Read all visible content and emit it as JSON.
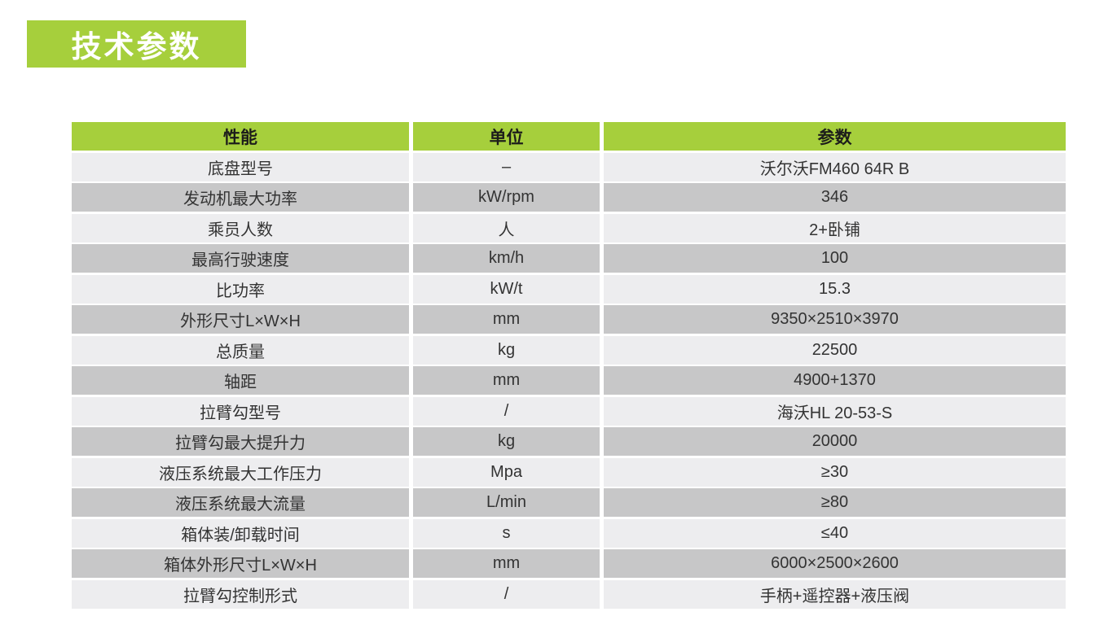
{
  "header": {
    "title": "技术参数"
  },
  "colors": {
    "accent_green": "#a6cf3c",
    "row_light": "#ededef",
    "row_dark": "#c7c7c8",
    "badge_text": "#ffffff",
    "header_text": "#1d1d1b",
    "cell_text": "#333333"
  },
  "table": {
    "columns": [
      "性能",
      "单位",
      "参数"
    ],
    "rows": [
      [
        "底盘型号",
        "–",
        "沃尔沃FM460 64R B"
      ],
      [
        "发动机最大功率",
        "kW/rpm",
        "346"
      ],
      [
        "乘员人数",
        "人",
        "2+卧铺"
      ],
      [
        "最高行驶速度",
        "km/h",
        "100"
      ],
      [
        "比功率",
        "kW/t",
        "15.3"
      ],
      [
        "外形尺寸L×W×H",
        "mm",
        "9350×2510×3970"
      ],
      [
        "总质量",
        "kg",
        "22500"
      ],
      [
        "轴距",
        "mm",
        "4900+1370"
      ],
      [
        "拉臂勾型号",
        "/",
        "海沃HL 20-53-S"
      ],
      [
        "拉臂勾最大提升力",
        "kg",
        "20000"
      ],
      [
        "液压系统最大工作压力",
        "Mpa",
        "≥30"
      ],
      [
        "液压系统最大流量",
        "L/min",
        "≥80"
      ],
      [
        "箱体装/卸载时间",
        "s",
        "≤40"
      ],
      [
        "箱体外形尺寸L×W×H",
        "mm",
        "6000×2500×2600"
      ],
      [
        "拉臂勾控制形式",
        "/",
        "手柄+遥控器+液压阀"
      ]
    ]
  }
}
